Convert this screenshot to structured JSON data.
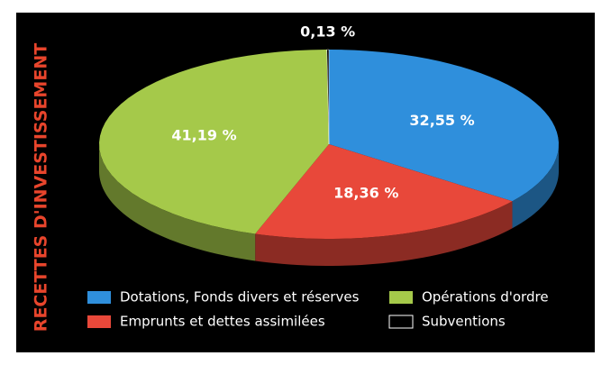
{
  "chart_data": {
    "type": "pie",
    "title": "RECETTES D'INVESTISSEMENT",
    "categories": [
      "Dotations, Fonds divers et réserves",
      "Emprunts et dettes assimilées",
      "Opérations d'ordre",
      "Subventions"
    ],
    "values": [
      32.55,
      18.36,
      41.19,
      0.13
    ],
    "value_labels": [
      "32,55 %",
      "18,36 %",
      "41,19 %",
      "0,13 %"
    ],
    "colors": [
      "#2f8fdc",
      "#e8483a",
      "#a5c94a",
      "#000000"
    ],
    "legend": "bottom"
  }
}
